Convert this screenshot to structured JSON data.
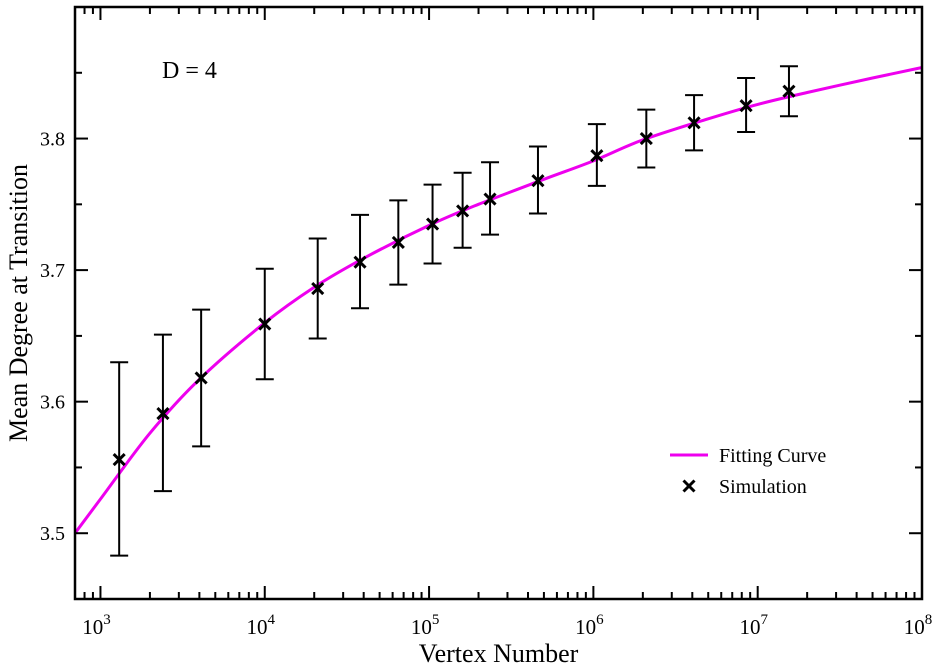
{
  "chart_data": {
    "type": "scatter",
    "title": "",
    "annotation": "D = 4",
    "xlabel": "Vertex Number",
    "ylabel": "Mean Degree at Transition",
    "xscale": "log",
    "xlim": [
      700,
      100000000
    ],
    "ylim": [
      3.45,
      3.9
    ],
    "yticks": [
      "3.5",
      "3.6",
      "3.7",
      "3.8"
    ],
    "xticks": [
      {
        "base": "10",
        "exp": "3"
      },
      {
        "base": "10",
        "exp": "4"
      },
      {
        "base": "10",
        "exp": "5"
      },
      {
        "base": "10",
        "exp": "6"
      },
      {
        "base": "10",
        "exp": "7"
      },
      {
        "base": "10",
        "exp": "8"
      }
    ],
    "legend": {
      "placement": "bottom-right",
      "entries": [
        "Fitting Curve",
        "Simulation"
      ]
    },
    "grid": false,
    "series": [
      {
        "name": "Fitting Curve",
        "kind": "line",
        "color": "#ee00ee",
        "x": [
          700,
          1000,
          2000,
          4000,
          10000,
          20000,
          40000,
          100000,
          200000,
          500000,
          1000000,
          2000000,
          5000000,
          10000000,
          20000000,
          50000000,
          100000000
        ],
        "y": [
          3.5,
          3.526,
          3.576,
          3.617,
          3.66,
          3.687,
          3.709,
          3.734,
          3.75,
          3.769,
          3.783,
          3.799,
          3.815,
          3.826,
          3.835,
          3.846,
          3.854
        ]
      },
      {
        "name": "Simulation",
        "kind": "scatter",
        "marker": "x",
        "color": "#000000",
        "x": [
          1300,
          2400,
          4100,
          10000,
          21000,
          38000,
          65000,
          105000,
          160000,
          235000,
          460000,
          1050000,
          2100000,
          4100000,
          8500000,
          15500000
        ],
        "y": [
          3.556,
          3.591,
          3.618,
          3.659,
          3.686,
          3.706,
          3.721,
          3.735,
          3.745,
          3.754,
          3.768,
          3.787,
          3.8,
          3.812,
          3.825,
          3.836
        ],
        "err_low": [
          3.483,
          3.532,
          3.566,
          3.617,
          3.648,
          3.671,
          3.689,
          3.705,
          3.717,
          3.727,
          3.743,
          3.764,
          3.778,
          3.791,
          3.805,
          3.817
        ],
        "err_high": [
          3.63,
          3.651,
          3.67,
          3.701,
          3.724,
          3.742,
          3.753,
          3.765,
          3.774,
          3.782,
          3.794,
          3.811,
          3.822,
          3.833,
          3.846,
          3.855
        ]
      }
    ]
  }
}
